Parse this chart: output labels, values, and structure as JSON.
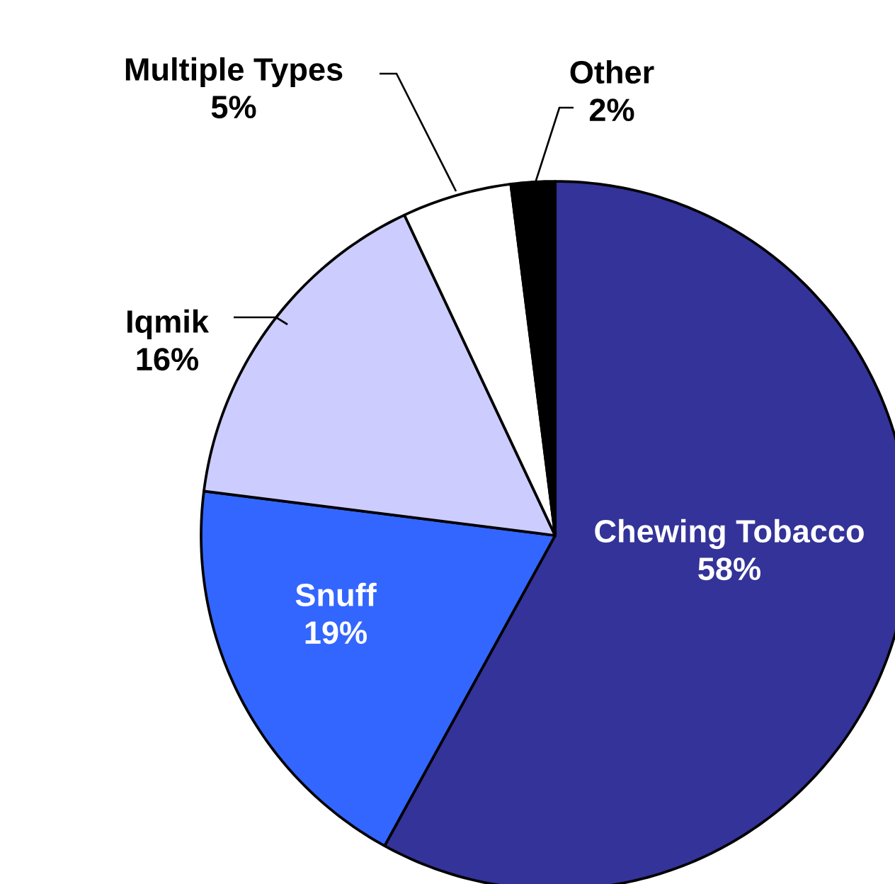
{
  "chart_data": {
    "type": "pie",
    "categories": [
      "Chewing Tobacco",
      "Snuff",
      "Iqmik",
      "Multiple Types",
      "Other"
    ],
    "values": [
      58,
      19,
      16,
      5,
      2
    ],
    "colors": [
      "#333399",
      "#3366ff",
      "#ccccff",
      "#ffffff",
      "#000000"
    ],
    "value_labels": [
      "58%",
      "19%",
      "16%",
      "5%",
      "2%"
    ]
  }
}
